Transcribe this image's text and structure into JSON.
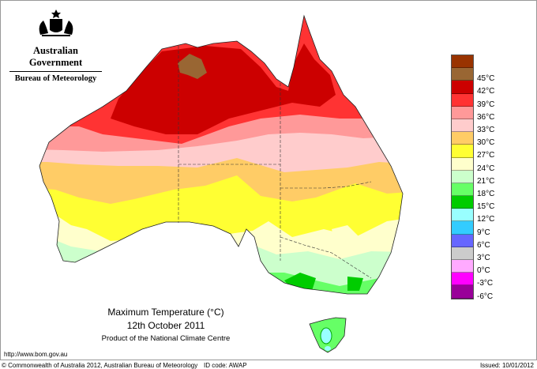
{
  "header": {
    "government": "Australian Government",
    "bureau": "Bureau of Meteorology",
    "logo": "commonwealth-coat-of-arms"
  },
  "legend": [
    {
      "color": "#993300"
    },
    {
      "label": "45°C",
      "color": "#996633"
    },
    {
      "label": "42°C",
      "color": "#cc0000"
    },
    {
      "label": "39°C",
      "color": "#ff3333"
    },
    {
      "label": "36°C",
      "color": "#ff9999"
    },
    {
      "label": "33°C",
      "color": "#ffcccc"
    },
    {
      "label": "30°C",
      "color": "#ffcc66"
    },
    {
      "label": "27°C",
      "color": "#ffff33"
    },
    {
      "label": "24°C",
      "color": "#ffffcc"
    },
    {
      "label": "21°C",
      "color": "#ccffcc"
    },
    {
      "label": "18°C",
      "color": "#66ff66"
    },
    {
      "label": "15°C",
      "color": "#00cc00"
    },
    {
      "label": "12°C",
      "color": "#99ffff"
    },
    {
      "label": "9°C",
      "color": "#33ccff"
    },
    {
      "label": "6°C",
      "color": "#6666ff"
    },
    {
      "label": "3°C",
      "color": "#cccccc"
    },
    {
      "label": "0°C",
      "color": "#ffaaff"
    },
    {
      "label": "-3°C",
      "color": "#ff00ff"
    },
    {
      "label": "-6°C",
      "color": "#990099"
    }
  ],
  "title": {
    "line1": "Maximum Temperature (°C)",
    "line2": "12th October 2011",
    "line3": "Product of the National Climate Centre"
  },
  "url": "http://www.bom.gov.au",
  "footer": {
    "copyright": "© Commonwealth of Australia 2012, Australian Bureau of Meteorology",
    "id_code": "ID code: AWAP",
    "issued": "Issued: 10/01/2012"
  }
}
